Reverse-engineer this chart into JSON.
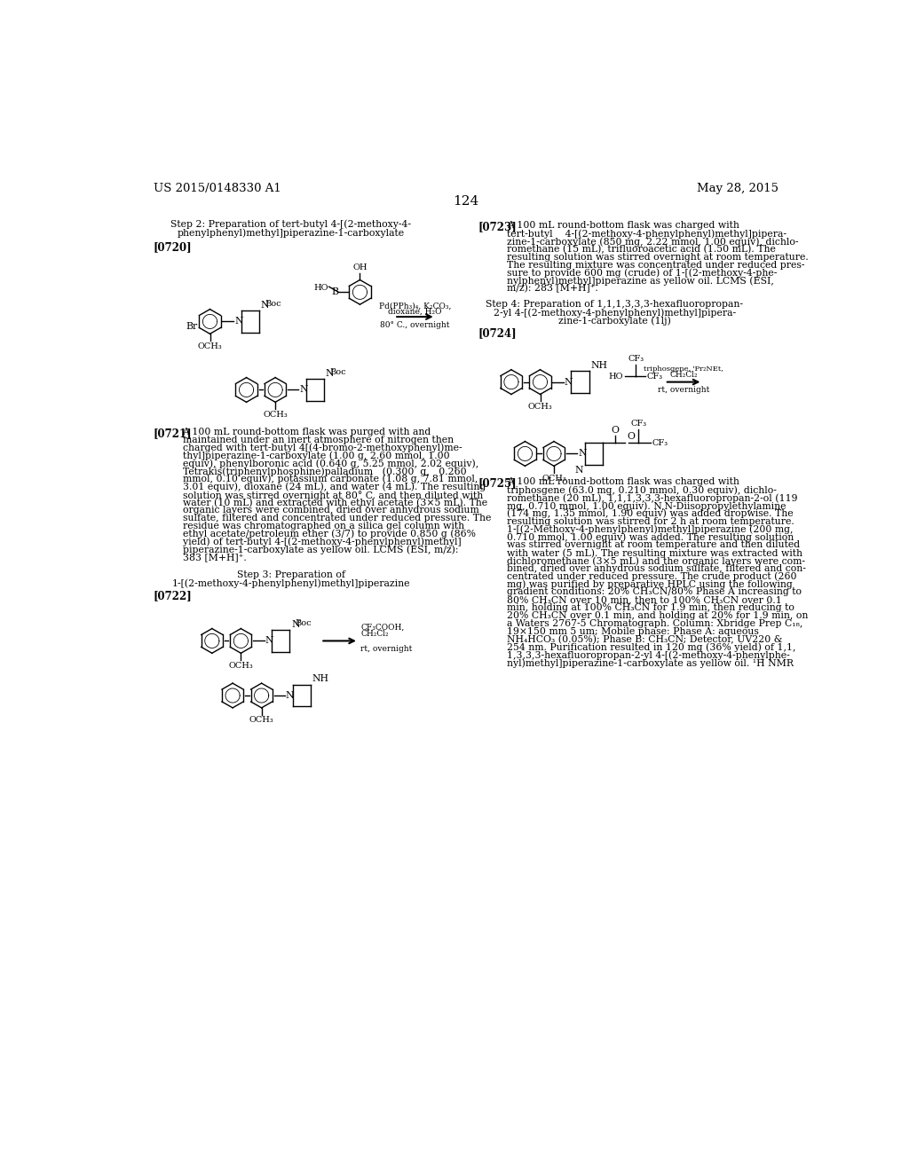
{
  "background_color": "#ffffff",
  "header_left": "US 2015/0148330 A1",
  "header_right": "May 28, 2015",
  "page_number": "124",
  "lc_step2_l1": "Step 2: Preparation of tert-butyl 4-[(2-methoxy-4-",
  "lc_step2_l2": "phenylphenyl)methyl]piperazine-1-carboxylate",
  "lc_tag0720": "[0720]",
  "lc_arr1_l1": "Pd(PPh₃)₄, K₂CO₃,",
  "lc_arr1_l2": "dioxane, H₂O",
  "lc_arr1_l3": "80° C., overnight",
  "lc_tag0721": "[0721]",
  "lc_para0721_l01": "A 100 mL round-bottom flask was purged with and",
  "lc_para0721_l02": "maintained under an inert atmosphere of nitrogen then",
  "lc_para0721_l03": "charged with tert-butyl 4[(4-bromo-2-methoxyphenyl)me-",
  "lc_para0721_l04": "thyl]piperazine-1-carboxylate (1.00 g, 2.60 mmol, 1.00",
  "lc_para0721_l05": "equiv), phenylboronic acid (0.640 g, 5.25 mmol, 2.02 equiv),",
  "lc_para0721_l06": "Tetrakis(triphenylphosphine)palladium   (0.300  g,   0.260",
  "lc_para0721_l07": "mmol, 0.10 equiv), potassium carbonate (1.08 g, 7.81 mmol,",
  "lc_para0721_l08": "3.01 equiv), dioxane (24 mL), and water (4 mL). The resulting",
  "lc_para0721_l09": "solution was stirred overnight at 80° C. and then diluted with",
  "lc_para0721_l10": "water (10 mL) and extracted with ethyl acetate (3×5 mL). The",
  "lc_para0721_l11": "organic layers were combined, dried over anhydrous sodium",
  "lc_para0721_l12": "sulfate, filtered and concentrated under reduced pressure. The",
  "lc_para0721_l13": "residue was chromatographed on a silica gel column with",
  "lc_para0721_l14": "ethyl acetate/petroleum ether (3/7) to provide 0.850 g (86%",
  "lc_para0721_l15": "yield) of tert-butyl 4-[(2-methoxy-4-phenylphenyl)methyl]",
  "lc_para0721_l16": "piperazine-1-carboxylate as yellow oil. LCMS (ESI, m/z):",
  "lc_para0721_l17": "383 [M+H]⁺.",
  "lc_step3_l1": "Step 3: Preparation of",
  "lc_step3_l2": "1-[(2-methoxy-4-phenylphenyl)methyl]piperazine",
  "lc_tag0722": "[0722]",
  "lc_arr3_l1": "CF₃COOH,",
  "lc_arr3_l2": "CH₂Cl₂",
  "lc_arr3_l3": "rt, overnight",
  "rc_tag0723": "[0723]",
  "rc_para0723_l01": "A 100 mL round-bottom flask was charged with",
  "rc_para0723_l02": "tert-butyl    4-[(2-methoxy-4-phenylphenyl)methyl]pipera-",
  "rc_para0723_l03": "zine-1-carboxylate (850 mg, 2.22 mmol, 1.00 equiv), dichlo-",
  "rc_para0723_l04": "romethane (15 mL), trifluoroacetic acid (1.50 mL). The",
  "rc_para0723_l05": "resulting solution was stirred overnight at room temperature.",
  "rc_para0723_l06": "The resulting mixture was concentrated under reduced pres-",
  "rc_para0723_l07": "sure to provide 600 mg (crude) of 1-[(2-methoxy-4-phe-",
  "rc_para0723_l08": "nylphenyl)methyl]piperazine as yellow oil. LCMS (ESI,",
  "rc_para0723_l09": "m/z): 283 [M+H]⁺.",
  "rc_step4_l1": "Step 4: Preparation of 1,1,1,3,3,3-hexafluoropropan-",
  "rc_step4_l2": "2-yl 4-[(2-methoxy-4-phenylphenyl)methyl]pipera-",
  "rc_step4_l3": "zine-1-carboxylate (1lj)",
  "rc_tag0724": "[0724]",
  "rc_arr4_l1": "triphosgene, ⁱPr₂NEt,",
  "rc_arr4_l2": "CH₂Cl₂",
  "rc_arr4_l3": "rt, overnight",
  "rc_tag0725": "[0725]",
  "rc_para0725_l01": "A 100 mL round-bottom flask was charged with",
  "rc_para0725_l02": "triphosgene (63.0 mg, 0.210 mmol, 0.30 equiv), dichlo-",
  "rc_para0725_l03": "romethane (20 mL), 1,1,1,3,3,3-hexafluoropropan-2-ol (119",
  "rc_para0725_l04": "mg, 0.710 mmol, 1.00 equiv). N,N-Diisopropylethylamine",
  "rc_para0725_l05": "(174 mg, 1.35 mmol, 1.90 equiv) was added dropwise. The",
  "rc_para0725_l06": "resulting solution was stirred for 2 h at room temperature.",
  "rc_para0725_l07": "1-[(2-Methoxy-4-phenylphenyl)methyl]piperazine (200 mg,",
  "rc_para0725_l08": "0.710 mmol, 1.00 equiv) was added. The resulting solution",
  "rc_para0725_l09": "was stirred overnight at room temperature and then diluted",
  "rc_para0725_l10": "with water (5 mL). The resulting mixture was extracted with",
  "rc_para0725_l11": "dichloromethane (3×5 mL) and the organic layers were com-",
  "rc_para0725_l12": "bined, dried over anhydrous sodium sulfate, filtered and con-",
  "rc_para0725_l13": "centrated under reduced pressure. The crude product (260",
  "rc_para0725_l14": "mg) was purified by preparative HPLC using the following",
  "rc_para0725_l15": "gradient conditions: 20% CH₃CN/80% Phase A increasing to",
  "rc_para0725_l16": "80% CH₃CN over 10 min, then to 100% CH₃CN over 0.1",
  "rc_para0725_l17": "min, holding at 100% CH₃CN for 1.9 min, then reducing to",
  "rc_para0725_l18": "20% CH₃CN over 0.1 min, and holding at 20% for 1.9 min, on",
  "rc_para0725_l19": "a Waters 2767-5 Chromatograph. Column: Xbridge Prep C₁₈,",
  "rc_para0725_l20": "19×150 mm 5 um; Mobile phase: Phase A: aqueous",
  "rc_para0725_l21": "NH₄HCO₃ (0.05%); Phase B: CH₃CN; Detector, UV220 &",
  "rc_para0725_l22": "254 nm. Purification resulted in 120 mg (36% yield) of 1,1,",
  "rc_para0725_l23": "1,3,3,3-hexafluoropropan-2-yl 4-[(2-methoxy-4-phenylphe-",
  "rc_para0725_l24": "nyl)methyl]piperazine-1-carboxylate as yellow oil. ¹H NMR"
}
